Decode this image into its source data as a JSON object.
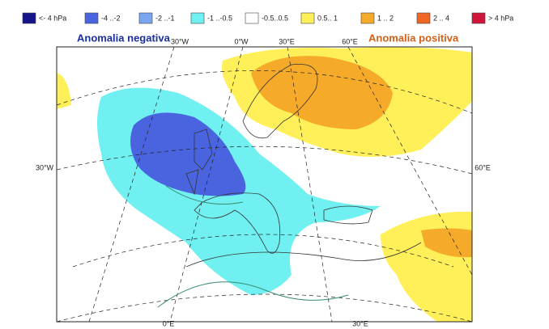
{
  "legend": {
    "items": [
      {
        "label": "<- 4 hPa",
        "color": "#14148c"
      },
      {
        "label": "-4 ..-2",
        "color": "#4a64e0"
      },
      {
        "label": "-2 ..-1",
        "color": "#78a6f0"
      },
      {
        "label": "-1 ..-0.5",
        "color": "#70f0f0"
      },
      {
        "label": "-0.5..0.5",
        "color": "#ffffff"
      },
      {
        "label": "0.5.. 1",
        "color": "#fff05a"
      },
      {
        "label": "1 .. 2",
        "color": "#f5aa2a"
      },
      {
        "label": "2 .. 4",
        "color": "#f06424"
      },
      {
        "label": "> 4 hPa",
        "color": "#d0143a"
      }
    ]
  },
  "annotations": {
    "negative": "Anomalia negativa",
    "positive": "Anomalia positiva"
  },
  "graticule": {
    "top": [
      "30°W",
      "0°W",
      "30°E",
      "60°E"
    ],
    "left": "30°W",
    "right": "60°E",
    "bottom": [
      "0°E",
      "30°E"
    ]
  }
}
